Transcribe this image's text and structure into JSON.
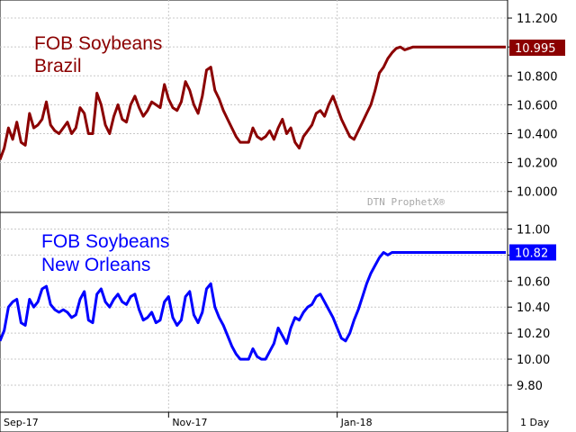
{
  "chart_data": [
    {
      "type": "line",
      "title": [
        "FOB Soybeans",
        "Brazil"
      ],
      "color": "#8b0000",
      "ylim": [
        9.88,
        11.3
      ],
      "yticks": [
        10.0,
        10.2,
        10.4,
        10.6,
        10.8,
        11.0,
        11.2
      ],
      "ytick_labels": [
        "10.000",
        "10.200",
        "10.400",
        "10.600",
        "10.800",
        "",
        "11.200"
      ],
      "last_value_label": "10.995",
      "last_value": 10.995,
      "watermark": "DTN ProphetX®",
      "grid": true,
      "series": [
        {
          "x": [
            0,
            2,
            4,
            6,
            8,
            10,
            12,
            14,
            16,
            18,
            20,
            22,
            24,
            26,
            28,
            30,
            32,
            34,
            36,
            38,
            40,
            42,
            44,
            46,
            48,
            50,
            52,
            54,
            56,
            58,
            60,
            62,
            64,
            66,
            68,
            70,
            72,
            74,
            76,
            78,
            80,
            82,
            84,
            86,
            88,
            90,
            92,
            94,
            96,
            98,
            100,
            102,
            104,
            106,
            108,
            110,
            112,
            114,
            116,
            118,
            120,
            122,
            124,
            126,
            128,
            130,
            132,
            134,
            136,
            138,
            140,
            142,
            144,
            146,
            148,
            150,
            152,
            154,
            156,
            158,
            160,
            162,
            164,
            166,
            168,
            170,
            172,
            174,
            176,
            178,
            180,
            182,
            184,
            186,
            188,
            190,
            192,
            194,
            196,
            198,
            200,
            202,
            204,
            206,
            208,
            210,
            212,
            214,
            216,
            218,
            220,
            222,
            224,
            226,
            228,
            230,
            232,
            234,
            236,
            238,
            240
          ],
          "values": [
            10.22,
            10.3,
            10.44,
            10.36,
            10.48,
            10.34,
            10.32,
            10.54,
            10.44,
            10.46,
            10.5,
            10.62,
            10.46,
            10.42,
            10.4,
            10.44,
            10.48,
            10.4,
            10.44,
            10.58,
            10.54,
            10.4,
            10.4,
            10.68,
            10.6,
            10.46,
            10.4,
            10.52,
            10.6,
            10.5,
            10.48,
            10.6,
            10.66,
            10.58,
            10.52,
            10.56,
            10.62,
            10.6,
            10.58,
            10.74,
            10.64,
            10.58,
            10.56,
            10.62,
            10.76,
            10.7,
            10.6,
            10.54,
            10.66,
            10.84,
            10.86,
            10.7,
            10.64,
            10.56,
            10.5,
            10.44,
            10.38,
            10.34,
            10.34,
            10.34,
            10.44,
            10.38,
            10.36,
            10.38,
            10.42,
            10.36,
            10.44,
            10.5,
            10.4,
            10.44,
            10.34,
            10.3,
            10.38,
            10.42,
            10.46,
            10.54,
            10.56,
            10.52,
            10.6,
            10.66,
            10.58,
            10.5,
            10.44,
            10.38,
            10.36,
            10.42,
            10.48,
            10.54,
            10.6,
            10.7,
            10.82,
            10.86,
            10.92,
            10.96,
            10.99,
            11.0,
            10.98,
            10.99,
            11.0,
            11.0,
            11.0,
            11.0,
            11.0,
            11.0,
            11.0,
            11.0,
            11.0,
            11.0,
            11.0,
            11.0,
            11.0,
            11.0,
            11.0,
            11.0,
            11.0,
            11.0,
            11.0,
            11.0,
            11.0,
            11.0,
            11.0
          ]
        }
      ]
    },
    {
      "type": "line",
      "title": [
        "FOB Soybeans",
        "New Orleans"
      ],
      "color": "#0000ff",
      "ylim": [
        9.62,
        11.1
      ],
      "yticks": [
        9.8,
        10.0,
        10.2,
        10.4,
        10.6,
        10.8,
        11.0
      ],
      "ytick_labels": [
        "9.80",
        "10.00",
        "10.20",
        "10.40",
        "10.60",
        "",
        "11.00"
      ],
      "last_value_label": "10.82",
      "last_value": 10.82,
      "grid": true,
      "series": [
        {
          "x": [
            0,
            2,
            4,
            6,
            8,
            10,
            12,
            14,
            16,
            18,
            20,
            22,
            24,
            26,
            28,
            30,
            32,
            34,
            36,
            38,
            40,
            42,
            44,
            46,
            48,
            50,
            52,
            54,
            56,
            58,
            60,
            62,
            64,
            66,
            68,
            70,
            72,
            74,
            76,
            78,
            80,
            82,
            84,
            86,
            88,
            90,
            92,
            94,
            96,
            98,
            100,
            102,
            104,
            106,
            108,
            110,
            112,
            114,
            116,
            118,
            120,
            122,
            124,
            126,
            128,
            130,
            132,
            134,
            136,
            138,
            140,
            142,
            144,
            146,
            148,
            150,
            152,
            154,
            156,
            158,
            160,
            162,
            164,
            166,
            168,
            170,
            172,
            174,
            176,
            178,
            180,
            182,
            184,
            186,
            188,
            190,
            192,
            194,
            196,
            198,
            200,
            202,
            204,
            206,
            208,
            210,
            212,
            214,
            216,
            218,
            220,
            222,
            224,
            226,
            228,
            230,
            232,
            234,
            236,
            238,
            240
          ],
          "values": [
            10.14,
            10.22,
            10.4,
            10.44,
            10.46,
            10.28,
            10.26,
            10.46,
            10.4,
            10.44,
            10.54,
            10.56,
            10.42,
            10.38,
            10.36,
            10.38,
            10.36,
            10.32,
            10.34,
            10.46,
            10.52,
            10.3,
            10.28,
            10.5,
            10.54,
            10.44,
            10.4,
            10.46,
            10.5,
            10.44,
            10.42,
            10.48,
            10.5,
            10.38,
            10.3,
            10.32,
            10.36,
            10.28,
            10.3,
            10.44,
            10.48,
            10.32,
            10.26,
            10.3,
            10.48,
            10.52,
            10.34,
            10.28,
            10.36,
            10.54,
            10.58,
            10.4,
            10.32,
            10.26,
            10.18,
            10.1,
            10.04,
            10.0,
            10.0,
            10.0,
            10.08,
            10.02,
            10.0,
            10.0,
            10.06,
            10.12,
            10.24,
            10.18,
            10.12,
            10.24,
            10.32,
            10.3,
            10.36,
            10.4,
            10.42,
            10.48,
            10.5,
            10.44,
            10.38,
            10.32,
            10.24,
            10.16,
            10.14,
            10.2,
            10.3,
            10.38,
            10.48,
            10.58,
            10.66,
            10.72,
            10.78,
            10.82,
            10.8,
            10.82,
            10.82,
            10.82,
            10.82,
            10.82,
            10.82,
            10.82,
            10.82,
            10.82,
            10.82,
            10.82,
            10.82,
            10.82,
            10.82,
            10.82,
            10.82,
            10.82,
            10.82,
            10.82,
            10.82,
            10.82,
            10.82,
            10.82,
            10.82,
            10.82,
            10.82,
            10.82,
            10.82
          ]
        }
      ]
    }
  ],
  "x_axis": {
    "range": [
      0,
      240
    ],
    "ticks": [
      {
        "x": 0,
        "label": "Sep-17"
      },
      {
        "x": 80,
        "label": "Nov-17"
      },
      {
        "x": 160,
        "label": "Jan-18"
      }
    ],
    "period_label": "1 Day"
  }
}
